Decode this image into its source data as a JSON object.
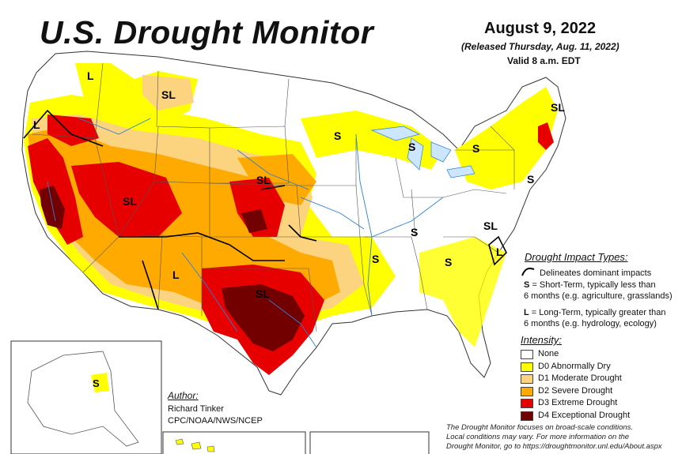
{
  "header": {
    "title": "U.S. Drought Monitor",
    "date": "August 9, 2022",
    "released": "(Released Thursday, Aug. 11, 2022)",
    "valid": "Valid 8 a.m. EDT"
  },
  "impact_types": {
    "title": "Drought Impact Types:",
    "delineates": "Delineates dominant impacts",
    "short_term_line1": "= Short-Term, typically less than",
    "short_term_line2": "6 months (e.g. agriculture, grasslands)",
    "long_term_line1": "= Long-Term, typically greater than",
    "long_term_line2": "6 months (e.g. hydrology, ecology)",
    "short_letter": "S",
    "long_letter": "L"
  },
  "intensity": {
    "title": "Intensity:",
    "levels": [
      {
        "label": "None",
        "color": "#ffffff"
      },
      {
        "label": "D0 Abnormally Dry",
        "color": "#ffff00"
      },
      {
        "label": "D1 Moderate Drought",
        "color": "#fcd37f"
      },
      {
        "label": "D2 Severe Drought",
        "color": "#ffaa00"
      },
      {
        "label": "D3 Extreme Drought",
        "color": "#e60000"
      },
      {
        "label": "D4 Exceptional Drought",
        "color": "#730000"
      }
    ]
  },
  "author": {
    "label": "Author:",
    "name": "Richard Tinker",
    "org": "CPC/NOAA/NWS/NCEP"
  },
  "footer": {
    "line1": "The Drought Monitor focuses on broad-scale conditions.",
    "line2": "Local conditions may vary. For more information on the",
    "line3": "Drought Monitor, go to https://droughtmonitor.unl.edu/About.aspx"
  },
  "map_labels": {
    "l_montana": "L",
    "sl_montana": "SL",
    "l_oregon": "L",
    "sl_utah": "SL",
    "sl_nebraska": "SL",
    "l_newmexico": "L",
    "sl_texas": "SL",
    "s_minnesota": "S",
    "s_michigan": "S",
    "s_arkansas": "S",
    "s_missouri": "S",
    "s_alabama": "S",
    "s_newyork": "S",
    "s_newjersey": "S",
    "sl_northeast": "SL",
    "sl_virginia": "SL",
    "l_carolina": "L",
    "s_alaska": "S"
  }
}
